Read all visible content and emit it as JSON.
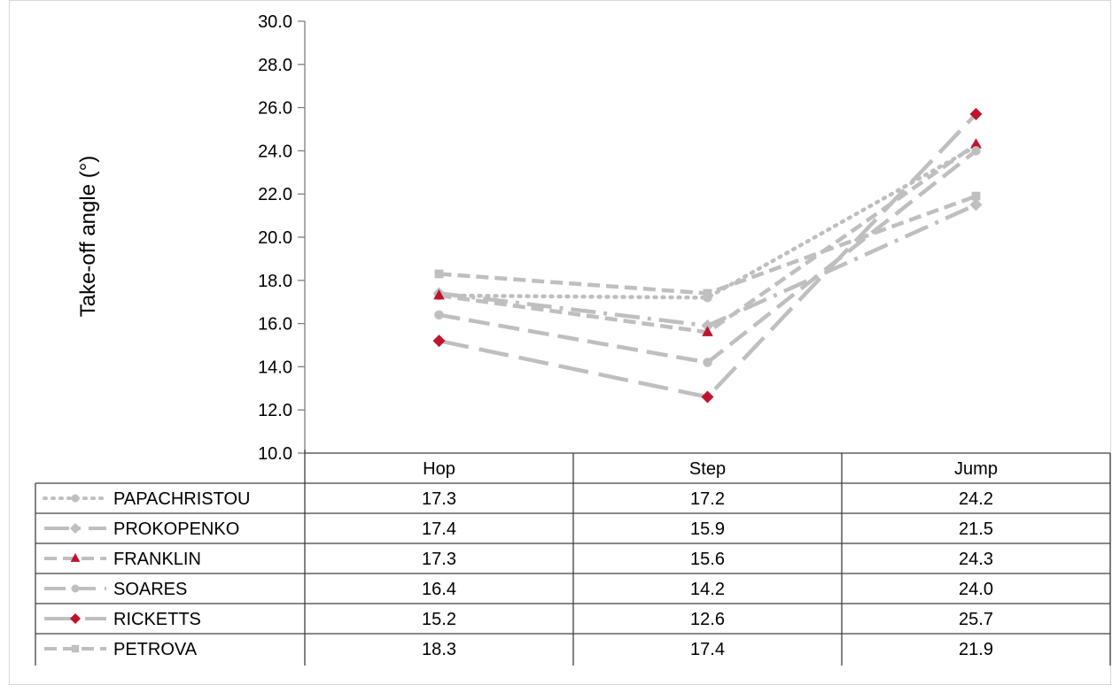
{
  "chart_data": {
    "type": "line",
    "title": "",
    "ylabel": "Take-off angle (°)",
    "xlabel": "",
    "categories": [
      "Hop",
      "Step",
      "Jump"
    ],
    "ylim": [
      10.0,
      30.0
    ],
    "yticks": [
      "10.0",
      "12.0",
      "14.0",
      "16.0",
      "18.0",
      "20.0",
      "22.0",
      "24.0",
      "26.0",
      "28.0",
      "30.0"
    ],
    "grid": false,
    "legend": "data-table-left",
    "series": [
      {
        "name": "PAPACHRISTOU",
        "values": [
          17.3,
          17.2,
          24.2
        ],
        "display": [
          "17.3",
          "17.2",
          "24.2"
        ],
        "color": "#bfbfbf",
        "marker": "circle",
        "marker_color": "#bfbfbf",
        "dash": "dot"
      },
      {
        "name": "PROKOPENKO",
        "values": [
          17.4,
          15.9,
          21.5
        ],
        "display": [
          "17.4",
          "15.9",
          "21.5"
        ],
        "color": "#bfbfbf",
        "marker": "diamond",
        "marker_color": "#bfbfbf",
        "dash": "longdashdot"
      },
      {
        "name": "FRANKLIN",
        "values": [
          17.3,
          15.6,
          24.3
        ],
        "display": [
          "17.3",
          "15.6",
          "24.3"
        ],
        "color": "#bfbfbf",
        "marker": "triangle",
        "marker_color": "#c0142e",
        "dash": "dash"
      },
      {
        "name": "SOARES",
        "values": [
          16.4,
          14.2,
          24.0
        ],
        "display": [
          "16.4",
          "14.2",
          "24.0"
        ],
        "color": "#bfbfbf",
        "marker": "circle",
        "marker_color": "#bfbfbf",
        "dash": "longdash"
      },
      {
        "name": "RICKETTS",
        "values": [
          15.2,
          12.6,
          25.7
        ],
        "display": [
          "15.2",
          "12.6",
          "25.7"
        ],
        "color": "#bfbfbf",
        "marker": "diamond",
        "marker_color": "#c0142e",
        "dash": "xlongdash"
      },
      {
        "name": "PETROVA",
        "values": [
          18.3,
          17.4,
          21.9
        ],
        "display": [
          "18.3",
          "17.4",
          "21.9"
        ],
        "color": "#bfbfbf",
        "marker": "square",
        "marker_color": "#bfbfbf",
        "dash": "dash"
      }
    ]
  }
}
